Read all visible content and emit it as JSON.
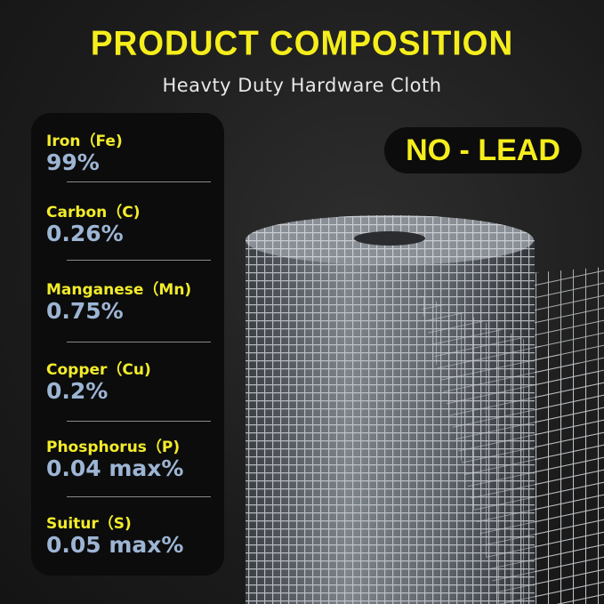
{
  "header": {
    "title": "PRODUCT COMPOSITION",
    "subtitle": "Heavty Duty Hardware Cloth"
  },
  "badge": "NO - LEAD",
  "composition": [
    {
      "element": "Iron（Fe)",
      "value": "99%"
    },
    {
      "element": "Carbon（C)",
      "value": "0.26%"
    },
    {
      "element": "Manganese（Mn)",
      "value": "0.75%"
    },
    {
      "element": "Copper（Cu)",
      "value": "0.2%"
    },
    {
      "element": "Phosphorus（P)",
      "value": "0.04 max%"
    },
    {
      "element": "Suitur（S)",
      "value": "0.05 max%"
    }
  ],
  "colors": {
    "accent": "#f5ee1c",
    "value": "#9db5d4",
    "background": "#1c1c1c"
  }
}
